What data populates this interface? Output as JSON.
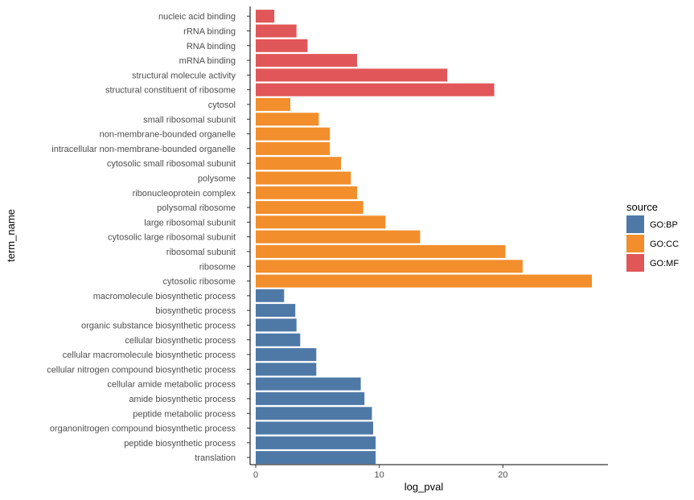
{
  "chart_data": {
    "type": "bar",
    "orientation": "horizontal",
    "xlabel": "log_pval",
    "ylabel": "term_name",
    "xlim": [
      0,
      27.2
    ],
    "xticks": [
      0,
      10,
      20
    ],
    "grid": false,
    "legend": {
      "title": "source",
      "placement": "right",
      "items": [
        {
          "name": "GO:BP",
          "color": "#4e79a7"
        },
        {
          "name": "GO:CC",
          "color": "#f28e2b"
        },
        {
          "name": "GO:MF",
          "color": "#e15759"
        }
      ]
    },
    "bars": [
      {
        "term": "nucleic acid binding",
        "value": 1.5,
        "source": "GO:MF"
      },
      {
        "term": "rRNA binding",
        "value": 3.3,
        "source": "GO:MF"
      },
      {
        "term": "RNA binding",
        "value": 4.2,
        "source": "GO:MF"
      },
      {
        "term": "mRNA binding",
        "value": 8.2,
        "source": "GO:MF"
      },
      {
        "term": "structural molecule activity",
        "value": 15.5,
        "source": "GO:MF"
      },
      {
        "term": "structural constituent of ribosome",
        "value": 19.3,
        "source": "GO:MF"
      },
      {
        "term": "cytosol",
        "value": 2.8,
        "source": "GO:CC"
      },
      {
        "term": "small ribosomal subunit",
        "value": 5.1,
        "source": "GO:CC"
      },
      {
        "term": "non-membrane-bounded organelle",
        "value": 6.0,
        "source": "GO:CC"
      },
      {
        "term": "intracellular non-membrane-bounded organelle",
        "value": 6.0,
        "source": "GO:CC"
      },
      {
        "term": "cytosolic small ribosomal subunit",
        "value": 6.9,
        "source": "GO:CC"
      },
      {
        "term": "polysome",
        "value": 7.7,
        "source": "GO:CC"
      },
      {
        "term": "ribonucleoprotein complex",
        "value": 8.2,
        "source": "GO:CC"
      },
      {
        "term": "polysomal ribosome",
        "value": 8.7,
        "source": "GO:CC"
      },
      {
        "term": "large ribosomal subunit",
        "value": 10.5,
        "source": "GO:CC"
      },
      {
        "term": "cytosolic large ribosomal subunit",
        "value": 13.3,
        "source": "GO:CC"
      },
      {
        "term": "ribosomal subunit",
        "value": 20.2,
        "source": "GO:CC"
      },
      {
        "term": "ribosome",
        "value": 21.6,
        "source": "GO:CC"
      },
      {
        "term": "cytosolic ribosome",
        "value": 27.2,
        "source": "GO:CC"
      },
      {
        "term": "macromolecule biosynthetic process",
        "value": 2.3,
        "source": "GO:BP"
      },
      {
        "term": "biosynthetic process",
        "value": 3.2,
        "source": "GO:BP"
      },
      {
        "term": "organic substance biosynthetic process",
        "value": 3.3,
        "source": "GO:BP"
      },
      {
        "term": "cellular biosynthetic process",
        "value": 3.6,
        "source": "GO:BP"
      },
      {
        "term": "cellular macromolecule biosynthetic process",
        "value": 4.9,
        "source": "GO:BP"
      },
      {
        "term": "cellular nitrogen compound biosynthetic process",
        "value": 4.9,
        "source": "GO:BP"
      },
      {
        "term": "cellular amide metabolic process",
        "value": 8.5,
        "source": "GO:BP"
      },
      {
        "term": "amide biosynthetic process",
        "value": 8.8,
        "source": "GO:BP"
      },
      {
        "term": "peptide metabolic process",
        "value": 9.4,
        "source": "GO:BP"
      },
      {
        "term": "organonitrogen compound biosynthetic process",
        "value": 9.5,
        "source": "GO:BP"
      },
      {
        "term": "peptide biosynthetic process",
        "value": 9.7,
        "source": "GO:BP"
      },
      {
        "term": "translation",
        "value": 9.7,
        "source": "GO:BP"
      }
    ]
  }
}
